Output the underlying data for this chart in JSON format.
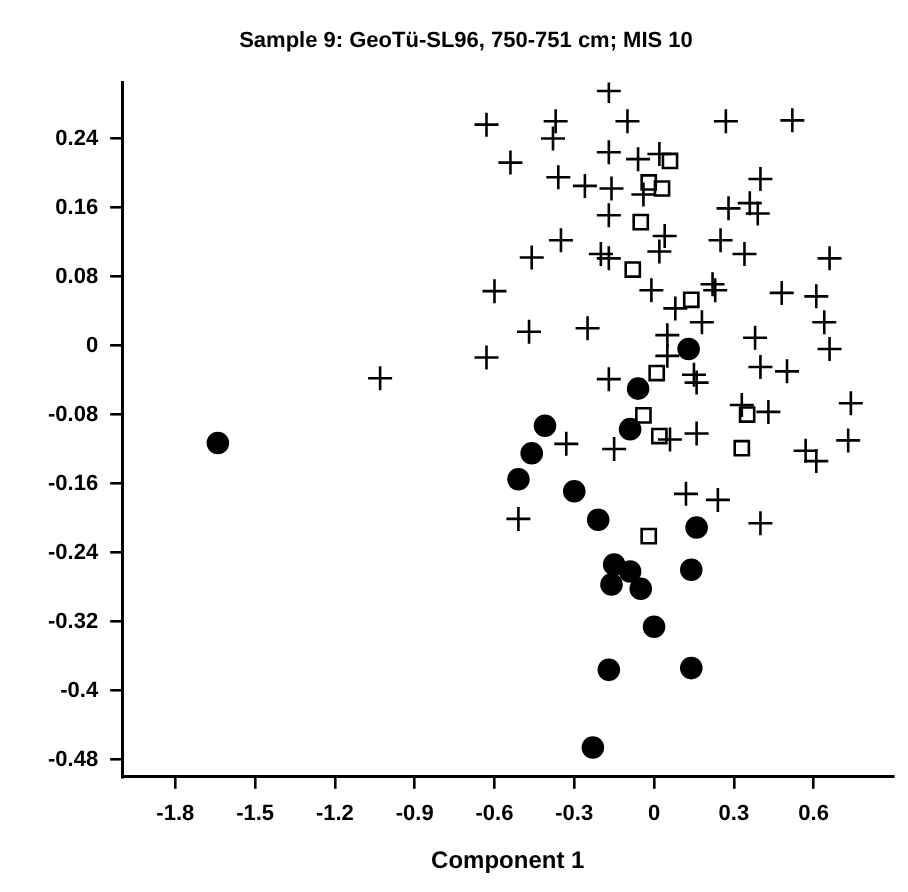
{
  "chart_data": {
    "type": "scatter",
    "title": "Sample 9: GeoTü-SL96, 750-751 cm; MIS 10",
    "xlabel": "Component 1",
    "xlim": [
      -2.0,
      0.9
    ],
    "xticks": [
      -1.8,
      -1.5,
      -1.2,
      -0.9,
      -0.6,
      -0.3,
      0,
      0.3,
      0.6
    ],
    "ylim": [
      -0.5,
      0.305
    ],
    "yticks": [
      0.24,
      0.16,
      0.08,
      0,
      -0.08,
      -0.16,
      -0.24,
      -0.32,
      -0.4,
      -0.48
    ],
    "grid": false,
    "legend": false,
    "series": [
      {
        "marker": "cross",
        "color": "#000000",
        "x": [
          -0.17,
          -0.63,
          -0.37,
          -0.38,
          -0.1,
          0.27,
          0.52,
          -0.54,
          -0.17,
          -0.06,
          0.02,
          -0.36,
          -0.26,
          -0.16,
          -0.04,
          0.4,
          0.28,
          0.36,
          0.39,
          -0.17,
          0.04,
          -0.35,
          -0.46,
          -0.2,
          -0.17,
          0.02,
          0.25,
          0.34,
          0.66,
          -0.6,
          -0.01,
          0.22,
          0.23,
          0.48,
          0.61,
          0.08,
          -0.47,
          -0.25,
          0.64,
          0.18,
          -0.63,
          0.05,
          0.38,
          0.66,
          0.05,
          0.4,
          0.5,
          0.15,
          0.16,
          -0.17,
          0.74,
          0.33,
          0.43,
          -0.33,
          -0.15,
          0.16,
          0.06,
          0.73,
          0.57,
          0.61,
          0.12,
          0.24,
          -0.51,
          0.4,
          -1.03
        ],
        "values": [
          0.295,
          0.256,
          0.26,
          0.24,
          0.26,
          0.26,
          0.261,
          0.212,
          0.224,
          0.216,
          0.222,
          0.195,
          0.185,
          0.182,
          0.175,
          0.193,
          0.159,
          0.165,
          0.153,
          0.151,
          0.127,
          0.122,
          0.102,
          0.106,
          0.101,
          0.109,
          0.122,
          0.106,
          0.101,
          0.063,
          0.064,
          0.071,
          0.064,
          0.061,
          0.057,
          0.043,
          0.016,
          0.02,
          0.027,
          0.027,
          -0.014,
          0.012,
          0.009,
          -0.004,
          -0.012,
          -0.025,
          -0.03,
          -0.034,
          -0.043,
          -0.039,
          -0.067,
          -0.069,
          -0.077,
          -0.114,
          -0.12,
          -0.102,
          -0.109,
          -0.11,
          -0.122,
          -0.134,
          -0.172,
          -0.179,
          -0.201,
          -0.206,
          -0.038
        ]
      },
      {
        "marker": "circle",
        "color": "#000000",
        "x": [
          -1.64,
          0.13,
          -0.06,
          -0.41,
          -0.09,
          -0.46,
          -0.51,
          -0.3,
          -0.21,
          0.16,
          -0.15,
          -0.09,
          -0.16,
          -0.05,
          0.14,
          0.0,
          -0.17,
          0.14,
          -0.23
        ],
        "values": [
          -0.113,
          -0.004,
          -0.05,
          -0.093,
          -0.097,
          -0.125,
          -0.155,
          -0.169,
          -0.202,
          -0.211,
          -0.254,
          -0.262,
          -0.277,
          -0.282,
          -0.26,
          -0.326,
          -0.376,
          -0.374,
          -0.466
        ]
      },
      {
        "marker": "square",
        "color": "#000000",
        "x": [
          0.06,
          -0.02,
          0.03,
          -0.05,
          -0.08,
          0.14,
          0.01,
          -0.04,
          0.02,
          0.35,
          0.33,
          -0.02
        ],
        "values": [
          0.214,
          0.189,
          0.182,
          0.143,
          0.088,
          0.053,
          -0.032,
          -0.081,
          -0.105,
          -0.08,
          -0.119,
          -0.221
        ]
      }
    ]
  }
}
